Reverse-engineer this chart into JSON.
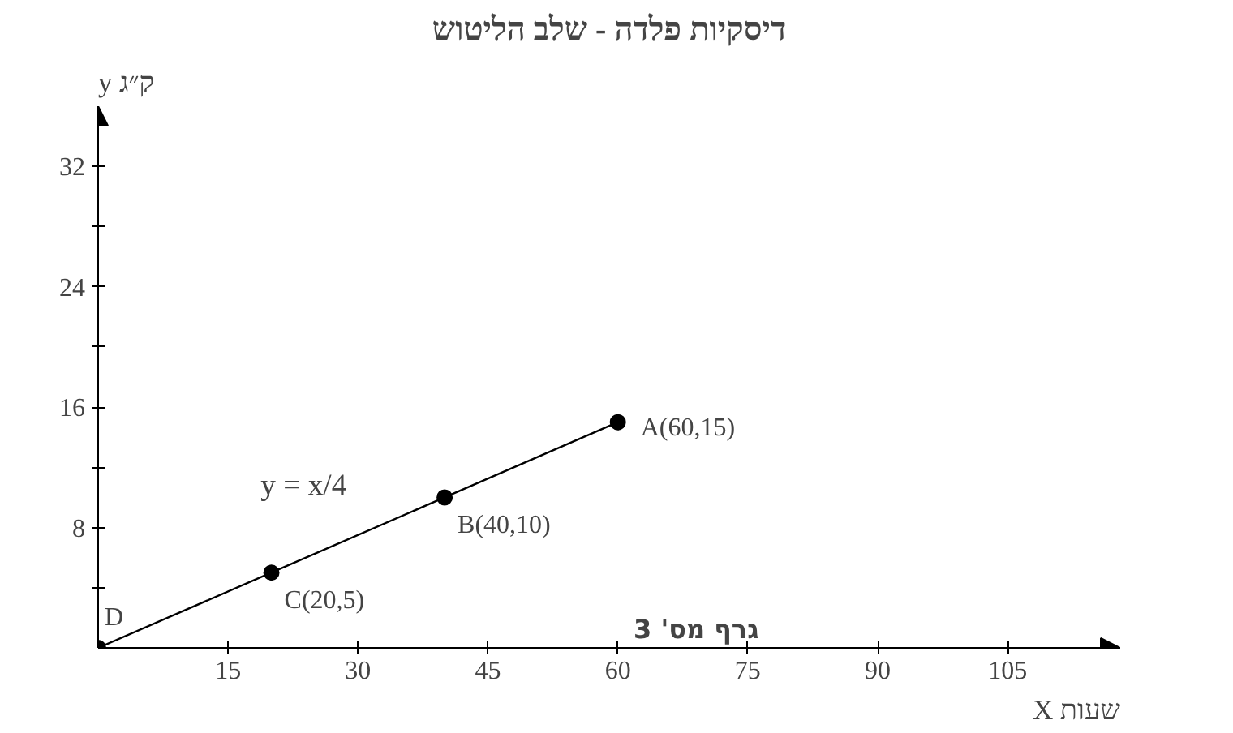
{
  "chart_data": {
    "type": "line",
    "title": "דיסקיות פלדה - שלב הליטוש",
    "xlabel": "X שעות",
    "ylabel": "y ק״ג",
    "x": [
      0,
      20,
      40,
      60
    ],
    "series": [
      {
        "color": "#000000",
        "values": [
          0,
          5,
          10,
          15
        ]
      }
    ],
    "marker": "circle",
    "line_style": "solid",
    "grid": false,
    "xlim": [
      0,
      118
    ],
    "ylim": [
      0,
      36
    ],
    "xticks": [
      15,
      30,
      45,
      60,
      75,
      90,
      105
    ],
    "yticks": [
      {
        "value": 4,
        "label": null
      },
      8,
      {
        "value": 12,
        "label": null
      },
      16,
      {
        "value": 20,
        "label": null
      },
      24,
      {
        "value": 28,
        "label": null
      },
      32
    ],
    "annotations": [
      {
        "text": "D",
        "x": 0,
        "y": 0
      },
      {
        "text": "C(20,5)",
        "x": 20,
        "y": 5
      },
      {
        "text": "B(40,10)",
        "x": 40,
        "y": 10
      },
      {
        "text": "A(60,15)",
        "x": 60,
        "y": 15
      },
      {
        "text": "y = x/4",
        "x": 30,
        "y": 7.5
      },
      "גרף מס' 3"
    ]
  }
}
